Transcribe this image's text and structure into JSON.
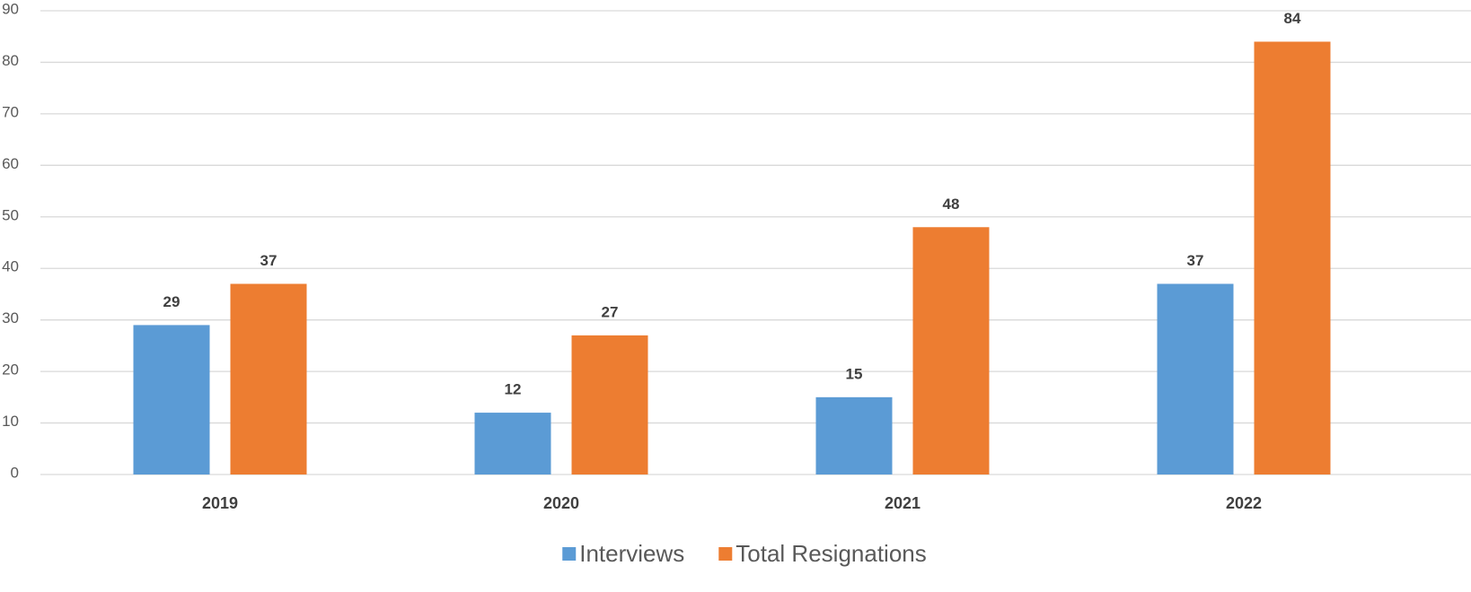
{
  "chart_data": {
    "type": "bar",
    "categories": [
      "2019",
      "2020",
      "2021",
      "2022"
    ],
    "series": [
      {
        "name": "Interviews",
        "color": "#5b9bd5",
        "values": [
          29,
          12,
          15,
          37
        ]
      },
      {
        "name": "Total Resignations",
        "color": "#ed7d31",
        "values": [
          37,
          27,
          48,
          84
        ]
      }
    ],
    "ylim": [
      0,
      90
    ],
    "yticks": [
      0,
      10,
      20,
      30,
      40,
      50,
      60,
      70,
      80,
      90
    ],
    "grid": true,
    "legend": "bottom"
  }
}
